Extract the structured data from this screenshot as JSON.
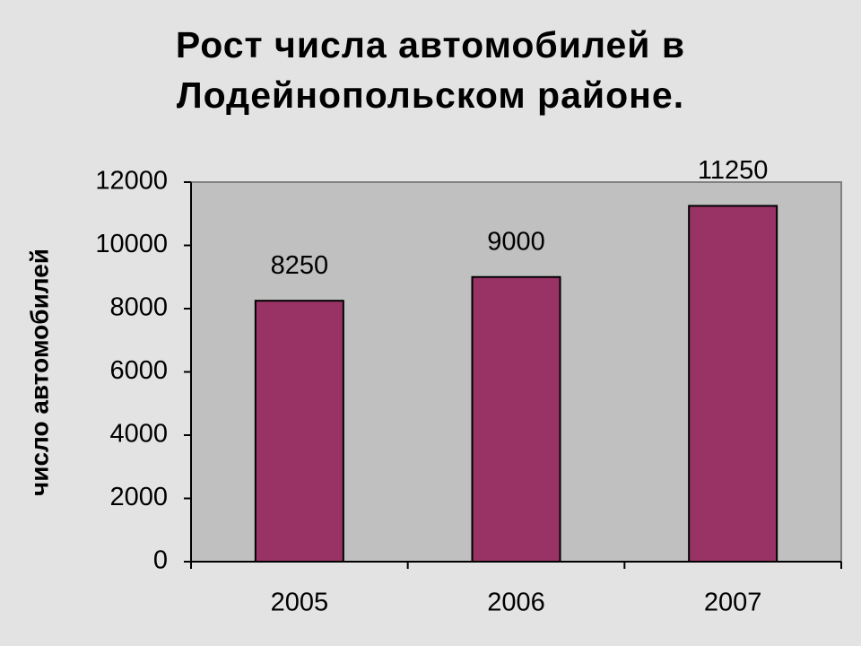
{
  "chart_data": {
    "type": "bar",
    "title": "Рост числа автомобилей в Лодейнопольском районе.",
    "y_label": "число автомобилей",
    "categories": [
      "2005",
      "2006",
      "2007"
    ],
    "values": [
      8250,
      9000,
      11250
    ],
    "color": "#993366",
    "ylim": [
      0,
      12000
    ],
    "yticks": [
      0,
      2000,
      4000,
      6000,
      8000,
      10000,
      12000
    ]
  }
}
